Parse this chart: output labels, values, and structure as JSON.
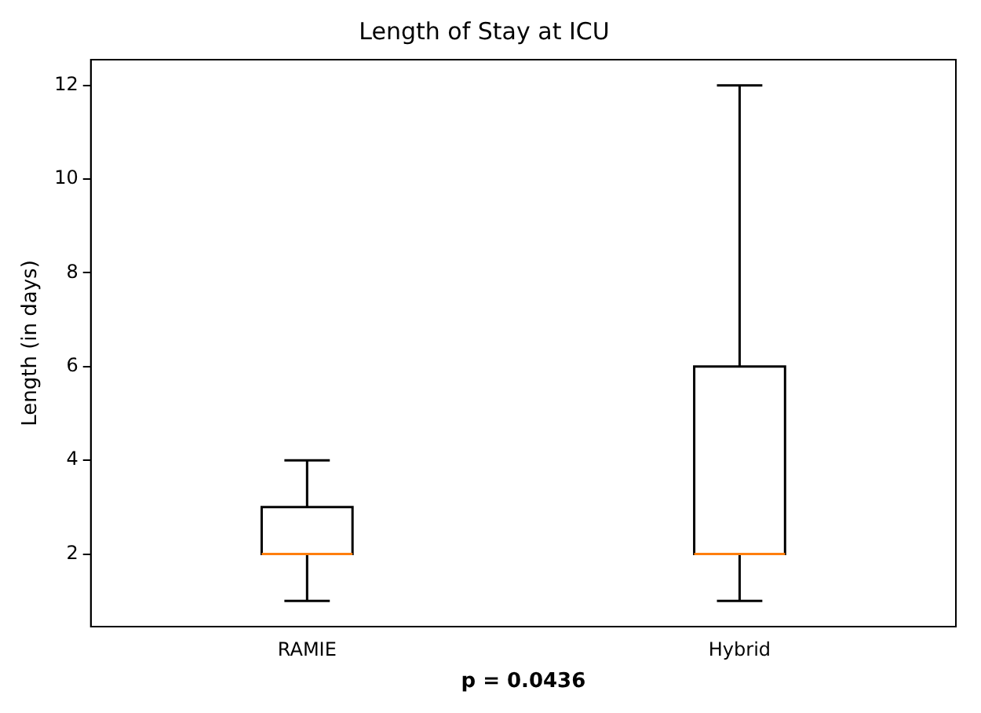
{
  "chart_data": {
    "type": "box",
    "title": "Length of Stay at ICU",
    "xlabel": "p = 0.0436",
    "ylabel": "Length (in days)",
    "categories": [
      "RAMIE",
      "Hybrid"
    ],
    "boxes": [
      {
        "low": 1,
        "q1": 2,
        "median": 2,
        "q3": 3,
        "high": 4
      },
      {
        "low": 1,
        "q1": 2,
        "median": 2,
        "q3": 6,
        "high": 12
      }
    ],
    "ylim": [
      0.45,
      12.55
    ],
    "yticks": [
      2,
      4,
      6,
      8,
      10,
      12
    ]
  }
}
